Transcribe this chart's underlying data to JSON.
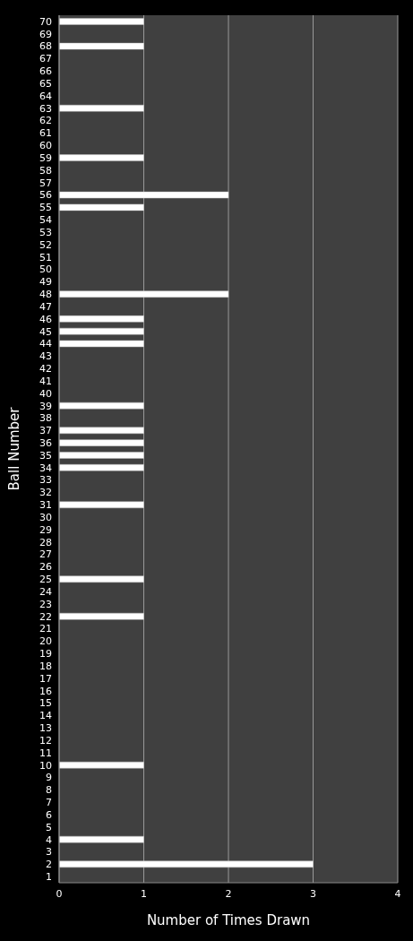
{
  "chart_data": {
    "type": "bar",
    "orientation": "horizontal",
    "xlabel": "Number of Times Drawn",
    "ylabel": "Ball Number",
    "categories": [
      "70",
      "69",
      "68",
      "67",
      "66",
      "65",
      "64",
      "63",
      "62",
      "61",
      "60",
      "59",
      "58",
      "57",
      "56",
      "55",
      "54",
      "53",
      "52",
      "51",
      "50",
      "49",
      "48",
      "47",
      "46",
      "45",
      "44",
      "43",
      "42",
      "41",
      "40",
      "39",
      "38",
      "37",
      "36",
      "35",
      "34",
      "33",
      "32",
      "31",
      "30",
      "29",
      "28",
      "27",
      "26",
      "25",
      "24",
      "23",
      "22",
      "21",
      "20",
      "19",
      "18",
      "17",
      "16",
      "15",
      "14",
      "13",
      "12",
      "11",
      "10",
      "9",
      "8",
      "7",
      "6",
      "5",
      "4",
      "3",
      "2",
      "1"
    ],
    "values": [
      1,
      0,
      1,
      0,
      0,
      0,
      0,
      1,
      0,
      0,
      0,
      1,
      0,
      0,
      2,
      1,
      0,
      0,
      0,
      0,
      0,
      0,
      2,
      0,
      1,
      1,
      1,
      0,
      0,
      0,
      0,
      1,
      0,
      1,
      1,
      1,
      1,
      0,
      0,
      1,
      0,
      0,
      0,
      0,
      0,
      1,
      0,
      0,
      1,
      0,
      0,
      0,
      0,
      0,
      0,
      0,
      0,
      0,
      0,
      0,
      1,
      0,
      0,
      0,
      0,
      0,
      1,
      0,
      3,
      0
    ],
    "color": "#ffffff",
    "xlim": [
      0,
      4
    ],
    "xticks": [
      0,
      1,
      2,
      3,
      4
    ],
    "grid": "x"
  }
}
